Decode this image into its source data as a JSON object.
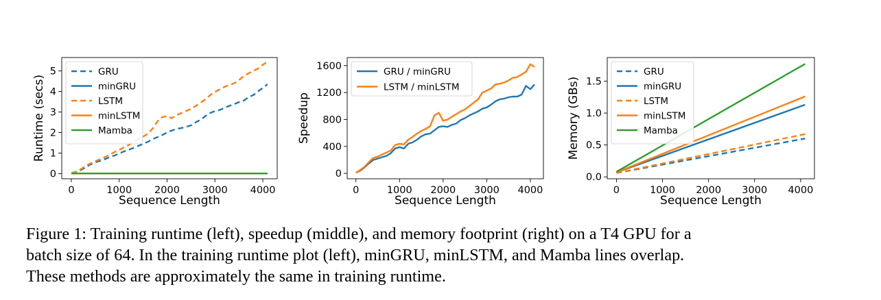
{
  "chart_data": [
    {
      "type": "line",
      "xlabel": "Sequence Length",
      "ylabel": "Runtime (secs)",
      "xlim": [
        -200,
        4300
      ],
      "ylim": [
        -0.25,
        5.65
      ],
      "xticks": [
        0,
        1000,
        2000,
        3000,
        4000
      ],
      "yticks": [
        0,
        1,
        2,
        3,
        4,
        5
      ],
      "legend_position": "upper-left",
      "series": [
        {
          "name": "GRU",
          "color": "#1f77b4",
          "dash": true,
          "x": [
            0,
            100,
            200,
            300,
            400,
            500,
            600,
            700,
            800,
            900,
            1000,
            1100,
            1200,
            1300,
            1400,
            1500,
            1600,
            1700,
            1800,
            1900,
            2000,
            2100,
            2200,
            2300,
            2400,
            2500,
            2600,
            2700,
            2800,
            2900,
            3000,
            3100,
            3200,
            3300,
            3400,
            3500,
            3600,
            3700,
            3800,
            3900,
            4000,
            4096
          ],
          "y": [
            0.02,
            0.08,
            0.18,
            0.3,
            0.45,
            0.55,
            0.62,
            0.7,
            0.8,
            0.88,
            0.98,
            1.08,
            1.16,
            1.25,
            1.35,
            1.45,
            1.55,
            1.68,
            1.78,
            1.88,
            2.0,
            2.1,
            2.18,
            2.22,
            2.28,
            2.35,
            2.5,
            2.62,
            2.8,
            2.95,
            3.05,
            3.1,
            3.2,
            3.3,
            3.38,
            3.48,
            3.55,
            3.72,
            3.82,
            4.0,
            4.18,
            4.35
          ]
        },
        {
          "name": "minGRU",
          "color": "#1f77b4",
          "dash": false,
          "x": [
            0,
            4096
          ],
          "y": [
            0.01,
            0.01
          ]
        },
        {
          "name": "LSTM",
          "color": "#ff7f0e",
          "dash": true,
          "x": [
            0,
            100,
            200,
            300,
            400,
            500,
            600,
            700,
            800,
            900,
            1000,
            1100,
            1200,
            1300,
            1400,
            1500,
            1600,
            1700,
            1800,
            1900,
            2000,
            2100,
            2200,
            2300,
            2400,
            2500,
            2600,
            2700,
            2800,
            2900,
            3000,
            3100,
            3200,
            3300,
            3400,
            3500,
            3600,
            3700,
            3800,
            3900,
            4000,
            4096
          ],
          "y": [
            0.02,
            0.1,
            0.22,
            0.38,
            0.5,
            0.6,
            0.7,
            0.8,
            0.92,
            1.05,
            1.15,
            1.28,
            1.4,
            1.55,
            1.68,
            1.8,
            1.95,
            2.2,
            2.55,
            2.75,
            2.8,
            2.7,
            2.85,
            2.95,
            3.05,
            3.15,
            3.3,
            3.45,
            3.62,
            3.82,
            3.98,
            4.1,
            4.22,
            4.32,
            4.4,
            4.55,
            4.75,
            4.88,
            5.0,
            5.12,
            5.3,
            5.45
          ]
        },
        {
          "name": "minLSTM",
          "color": "#ff7f0e",
          "dash": false,
          "x": [
            0,
            4096
          ],
          "y": [
            0.01,
            0.01
          ]
        },
        {
          "name": "Mamba",
          "color": "#2ca02c",
          "dash": false,
          "x": [
            0,
            4096
          ],
          "y": [
            0.01,
            0.01
          ]
        }
      ]
    },
    {
      "type": "line",
      "xlabel": "Sequence Length",
      "ylabel": "Speedup",
      "xlim": [
        -200,
        4300
      ],
      "ylim": [
        -80,
        1720
      ],
      "xticks": [
        0,
        1000,
        2000,
        3000,
        4000
      ],
      "yticks": [
        0,
        400,
        800,
        1200,
        1600
      ],
      "legend_position": "upper-left",
      "series": [
        {
          "name": "GRU / minGRU",
          "color": "#1f77b4",
          "dash": false,
          "x": [
            0,
            100,
            200,
            300,
            400,
            500,
            600,
            700,
            800,
            900,
            1000,
            1100,
            1200,
            1300,
            1400,
            1500,
            1600,
            1700,
            1800,
            1900,
            2000,
            2100,
            2200,
            2300,
            2400,
            2500,
            2600,
            2700,
            2800,
            2900,
            3000,
            3100,
            3200,
            3300,
            3400,
            3500,
            3600,
            3700,
            3800,
            3900,
            4000,
            4096
          ],
          "y": [
            10,
            40,
            90,
            150,
            200,
            220,
            240,
            260,
            300,
            370,
            390,
            370,
            440,
            460,
            500,
            550,
            580,
            590,
            640,
            690,
            700,
            690,
            720,
            740,
            790,
            820,
            860,
            890,
            920,
            960,
            980,
            1020,
            1070,
            1100,
            1110,
            1130,
            1140,
            1140,
            1170,
            1300,
            1250,
            1320
          ]
        },
        {
          "name": "LSTM / minLSTM",
          "color": "#ff7f0e",
          "dash": false,
          "x": [
            0,
            100,
            200,
            300,
            400,
            500,
            600,
            700,
            800,
            900,
            1000,
            1100,
            1200,
            1300,
            1400,
            1500,
            1600,
            1700,
            1800,
            1900,
            2000,
            2100,
            2200,
            2300,
            2400,
            2500,
            2600,
            2700,
            2800,
            2900,
            3000,
            3100,
            3200,
            3300,
            3400,
            3500,
            3600,
            3700,
            3800,
            3900,
            4000,
            4096
          ],
          "y": [
            10,
            50,
            100,
            170,
            230,
            250,
            280,
            310,
            340,
            420,
            440,
            430,
            500,
            540,
            590,
            630,
            660,
            700,
            860,
            900,
            780,
            800,
            840,
            880,
            920,
            950,
            1000,
            1050,
            1100,
            1200,
            1230,
            1260,
            1320,
            1330,
            1350,
            1380,
            1420,
            1430,
            1470,
            1510,
            1620,
            1580
          ]
        }
      ]
    },
    {
      "type": "line",
      "xlabel": "Sequence Length",
      "ylabel": "Memory (GBs)",
      "xlim": [
        -200,
        4300
      ],
      "ylim": [
        -0.03,
        1.87
      ],
      "xticks": [
        0,
        1000,
        2000,
        3000,
        4000
      ],
      "yticks": [
        0,
        0.5,
        1.0,
        1.5
      ],
      "legend_position": "upper-left",
      "series": [
        {
          "name": "GRU",
          "color": "#1f77b4",
          "dash": true,
          "x": [
            0,
            4096
          ],
          "y": [
            0.06,
            0.6
          ]
        },
        {
          "name": "minGRU",
          "color": "#1f77b4",
          "dash": false,
          "x": [
            0,
            4096
          ],
          "y": [
            0.07,
            1.13
          ]
        },
        {
          "name": "LSTM",
          "color": "#ff7f0e",
          "dash": true,
          "x": [
            0,
            4096
          ],
          "y": [
            0.06,
            0.67
          ]
        },
        {
          "name": "minLSTM",
          "color": "#ff7f0e",
          "dash": false,
          "x": [
            0,
            4096
          ],
          "y": [
            0.07,
            1.26
          ]
        },
        {
          "name": "Mamba",
          "color": "#2ca02c",
          "dash": false,
          "x": [
            0,
            4096
          ],
          "y": [
            0.08,
            1.77
          ]
        }
      ]
    }
  ],
  "caption": {
    "line1": "Figure 1: Training runtime (left), speedup (middle), and memory footprint (right) on a T4 GPU for a",
    "line2": "batch size of 64. In the training runtime plot (left), minGRU, minLSTM, and Mamba lines overlap.",
    "line3": "These methods are approximately the same in training runtime."
  }
}
